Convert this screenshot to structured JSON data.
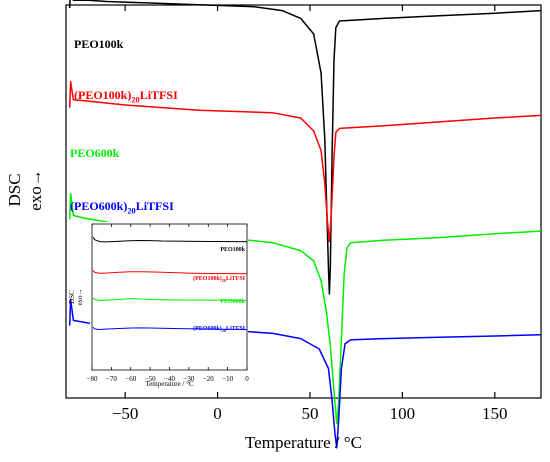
{
  "chart_data": [
    {
      "type": "line",
      "title": "",
      "xlabel": "Temperature / °C",
      "ylabel": "DSC",
      "ylabel_sub": "exo→",
      "xlim": [
        -82,
        175
      ],
      "xticks": [
        -50,
        0,
        50,
        100,
        150
      ],
      "xtick_labels": [
        "−50",
        "0",
        "50",
        "100",
        "150"
      ],
      "y_ticks_shown": false,
      "grid": false,
      "series": [
        {
          "name": "PEO100k",
          "color": "#000000",
          "points": [
            [
              -80,
              0.3
            ],
            [
              -79.5,
              0.5
            ],
            [
              -78,
              0.36
            ],
            [
              -70,
              0.36
            ],
            [
              -60,
              0.35
            ],
            [
              -40,
              0.34
            ],
            [
              -20,
              0.33
            ],
            [
              0,
              0.32
            ],
            [
              20,
              0.31
            ],
            [
              35,
              0.28
            ],
            [
              45,
              0.22
            ],
            [
              52,
              0.1
            ],
            [
              56,
              -0.2
            ],
            [
              58,
              -0.7
            ],
            [
              59,
              -1.2
            ],
            [
              60,
              -1.7
            ],
            [
              60.5,
              -1.9
            ],
            [
              61,
              -1.7
            ],
            [
              62,
              -0.8
            ],
            [
              63,
              -0.1
            ],
            [
              64,
              0.15
            ],
            [
              66,
              0.2
            ],
            [
              90,
              0.22
            ],
            [
              120,
              0.24
            ],
            [
              150,
              0.26
            ],
            [
              175,
              0.28
            ]
          ]
        },
        {
          "name": "(PEO100k)20LiTFSI",
          "color": "#ff0000",
          "points": [
            [
              -80,
              -0.02
            ],
            [
              -79.5,
              0.18
            ],
            [
              -78,
              0.04
            ],
            [
              -70,
              0.03
            ],
            [
              -50,
              0.0
            ],
            [
              -30,
              -0.02
            ],
            [
              -10,
              -0.04
            ],
            [
              10,
              -0.05
            ],
            [
              30,
              -0.06
            ],
            [
              45,
              -0.1
            ],
            [
              52,
              -0.2
            ],
            [
              56,
              -0.35
            ],
            [
              58,
              -0.6
            ],
            [
              59.5,
              -0.9
            ],
            [
              60.5,
              -1.05
            ],
            [
              61.5,
              -0.85
            ],
            [
              63,
              -0.4
            ],
            [
              64,
              -0.21
            ],
            [
              66,
              -0.18
            ],
            [
              90,
              -0.16
            ],
            [
              120,
              -0.13
            ],
            [
              150,
              -0.1
            ],
            [
              175,
              -0.08
            ]
          ]
        },
        {
          "name": "PEO600k",
          "color": "#00ee00",
          "points": [
            [
              -80,
              -0.48
            ],
            [
              -79.5,
              -0.28
            ],
            [
              -78,
              -0.45
            ],
            [
              -72,
              -0.47
            ],
            [
              -60,
              -0.5
            ],
            [
              -45,
              -0.55
            ],
            [
              -30,
              -0.58
            ],
            [
              -10,
              -0.61
            ],
            [
              10,
              -0.63
            ],
            [
              30,
              -0.66
            ],
            [
              45,
              -0.72
            ],
            [
              52,
              -0.8
            ],
            [
              56,
              -0.95
            ],
            [
              59,
              -1.2
            ],
            [
              61,
              -1.45
            ],
            [
              63,
              -1.8
            ],
            [
              64.5,
              -2.05
            ],
            [
              65.5,
              -1.9
            ],
            [
              67,
              -1.4
            ],
            [
              68.5,
              -0.9
            ],
            [
              70,
              -0.7
            ],
            [
              72,
              -0.66
            ],
            [
              90,
              -0.64
            ],
            [
              120,
              -0.62
            ],
            [
              150,
              -0.59
            ],
            [
              175,
              -0.57
            ]
          ]
        },
        {
          "name": "(PEO600k)20LiTFSI",
          "color": "#0000ff",
          "points": [
            [
              -80,
              -0.82
            ],
            [
              -79.5,
              -0.62
            ],
            [
              -78,
              -0.78
            ],
            [
              -70,
              -0.8
            ],
            [
              -50,
              -0.83
            ],
            [
              -30,
              -0.84
            ],
            [
              -10,
              -0.85
            ],
            [
              10,
              -0.86
            ],
            [
              30,
              -0.88
            ],
            [
              45,
              -0.92
            ],
            [
              55,
              -1.0
            ],
            [
              60,
              -1.15
            ],
            [
              62,
              -1.4
            ],
            [
              63.5,
              -1.65
            ],
            [
              64.5,
              -1.76
            ],
            [
              65.5,
              -1.55
            ],
            [
              67,
              -1.15
            ],
            [
              69,
              -0.96
            ],
            [
              72,
              -0.93
            ],
            [
              90,
              -0.92
            ],
            [
              120,
              -0.91
            ],
            [
              150,
              -0.9
            ],
            [
              175,
              -0.89
            ]
          ]
        }
      ],
      "annotations": [
        {
          "text": "PEO100k",
          "color": "#000000"
        },
        {
          "text": "(PEO100k)",
          "sub": "20",
          "text2": "LiTFSI",
          "color": "#ff0000"
        },
        {
          "text": "PEO600k",
          "color": "#00ee00"
        },
        {
          "text": "(PEO600k)",
          "sub": "20",
          "text2": "LiTFSI",
          "color": "#0000ff"
        }
      ]
    },
    {
      "type": "line",
      "title": "",
      "xlabel": "Temperature / °C",
      "ylabel": "DSC",
      "ylabel_sub": "exo→",
      "xlim": [
        -80,
        0
      ],
      "xticks": [
        -80,
        -70,
        -60,
        -50,
        -40,
        -30,
        -20,
        -10,
        0
      ],
      "xtick_labels": [
        "−80",
        "−70",
        "−60",
        "−50",
        "−40",
        "−30",
        "−20",
        "−10",
        "0"
      ],
      "y_ticks_shown": false,
      "grid": false,
      "series": [
        {
          "name": "PEO100k",
          "color": "#000000",
          "points": [
            [
              -79.5,
              0.6
            ],
            [
              -78.5,
              0.4
            ],
            [
              -76,
              0.26
            ],
            [
              -73,
              0.24
            ],
            [
              -68,
              0.27
            ],
            [
              -62,
              0.32
            ],
            [
              -56,
              0.35
            ],
            [
              -50,
              0.34
            ],
            [
              -44,
              0.31
            ],
            [
              -38,
              0.3
            ],
            [
              -32,
              0.29
            ],
            [
              -26,
              0.28
            ],
            [
              -20,
              0.27
            ],
            [
              -14,
              0.27
            ],
            [
              -8,
              0.26
            ],
            [
              0,
              0.25
            ]
          ]
        },
        {
          "name": "(PEO100k)20LiTFSI",
          "color": "#ff0000",
          "points": [
            [
              -79.5,
              0.2
            ],
            [
              -78.5,
              0.05
            ],
            [
              -76,
              -0.02
            ],
            [
              -72,
              0.0
            ],
            [
              -66,
              0.06
            ],
            [
              -60,
              0.1
            ],
            [
              -54,
              0.1
            ],
            [
              -48,
              0.08
            ],
            [
              -42,
              0.05
            ],
            [
              -36,
              0.02
            ],
            [
              -30,
              -0.01
            ],
            [
              -24,
              -0.03
            ],
            [
              -18,
              -0.04
            ],
            [
              -10,
              -0.05
            ],
            [
              0,
              -0.06
            ]
          ]
        },
        {
          "name": "PEO600k",
          "color": "#00ee00",
          "points": [
            [
              -79.5,
              -0.14
            ],
            [
              -78.5,
              -0.28
            ],
            [
              -76,
              -0.34
            ],
            [
              -72,
              -0.32
            ],
            [
              -67,
              -0.28
            ],
            [
              -62,
              -0.22
            ],
            [
              -58,
              -0.2
            ],
            [
              -54,
              -0.24
            ],
            [
              -48,
              -0.28
            ],
            [
              -42,
              -0.3
            ],
            [
              -36,
              -0.31
            ],
            [
              -28,
              -0.32
            ],
            [
              -20,
              -0.32
            ],
            [
              -10,
              -0.33
            ],
            [
              0,
              -0.33
            ]
          ]
        },
        {
          "name": "(PEO600k)20LiTFSI",
          "color": "#0000ff",
          "points": [
            [
              -79.5,
              -0.48
            ],
            [
              -78.5,
              -0.62
            ],
            [
              -76,
              -0.65
            ],
            [
              -72,
              -0.62
            ],
            [
              -66,
              -0.58
            ],
            [
              -60,
              -0.54
            ],
            [
              -55,
              -0.53
            ],
            [
              -50,
              -0.54
            ],
            [
              -44,
              -0.56
            ],
            [
              -38,
              -0.58
            ],
            [
              -30,
              -0.6
            ],
            [
              -22,
              -0.62
            ],
            [
              -14,
              -0.63
            ],
            [
              -6,
              -0.64
            ],
            [
              0,
              -0.65
            ]
          ]
        }
      ],
      "annotations": [
        {
          "text": "PEO100k",
          "color": "#000000"
        },
        {
          "text": "(PEO100k)",
          "sub": "20",
          "text2": "LiTFSI",
          "color": "#ff0000"
        },
        {
          "text": "PEO600k",
          "color": "#00ee00"
        },
        {
          "text": "(PEO600k)",
          "sub": "20",
          "text2": "LiTFSI",
          "color": "#0000ff"
        }
      ]
    }
  ]
}
